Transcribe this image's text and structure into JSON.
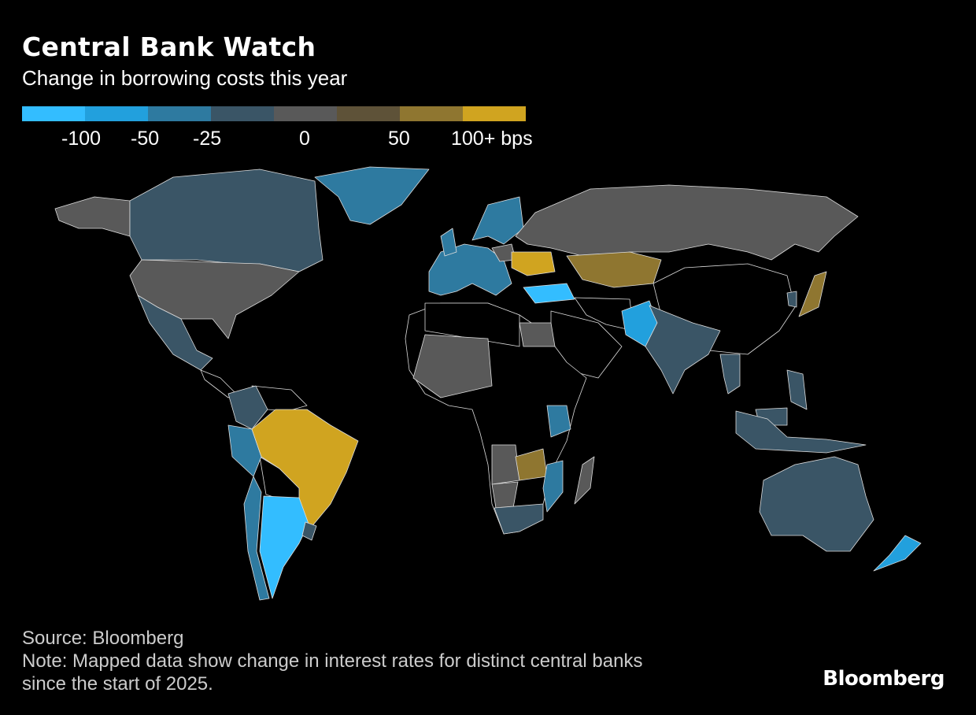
{
  "header": {
    "title": "Central Bank Watch",
    "subtitle": "Change in borrowing costs this year"
  },
  "chart_data": {
    "type": "choropleth",
    "title": "Central Bank Watch",
    "subtitle": "Change in borrowing costs this year",
    "unit": "bps",
    "legend": {
      "colors": [
        "#33bdff",
        "#22a0dd",
        "#2e7aa0",
        "#3a5566",
        "#595959",
        "#5e5238",
        "#8f7630",
        "#d0a420"
      ],
      "tick_labels": [
        "-100",
        "-50",
        "-25",
        "0",
        "50",
        "100+ bps"
      ]
    },
    "countries": {
      "Canada": -25,
      "United States": 0,
      "Mexico": -25,
      "Greenland (Denmark)": -50,
      "Colombia": -25,
      "Peru": -50,
      "Brazil": 100,
      "Chile": -50,
      "Argentina": -100,
      "Uruguay": -25,
      "Euro area": -50,
      "United Kingdom": -50,
      "Nordics": -50,
      "Poland": 0,
      "Ukraine": 100,
      "Turkey": -100,
      "Russia": 0,
      "Kazakhstan": 75,
      "Pakistan": -75,
      "India": -25,
      "Japan": 75,
      "South Korea": -25,
      "Thailand": -25,
      "Philippines": -25,
      "Malaysia": -25,
      "Indonesia": -25,
      "Australia": -25,
      "New Zealand": -75,
      "Egypt": 0,
      "West Africa": 0,
      "Kenya": -50,
      "Zambia": 75,
      "Mozambique": -50,
      "Angola": 0,
      "Namibia": 0,
      "South Africa": -25,
      "Madagascar": 0
    }
  },
  "footer": {
    "source": "Source: Bloomberg",
    "note_line1": "Note: Mapped data show change in interest rates for distinct central banks",
    "note_line2": "since the start of 2025.",
    "logo": "Bloomberg"
  }
}
